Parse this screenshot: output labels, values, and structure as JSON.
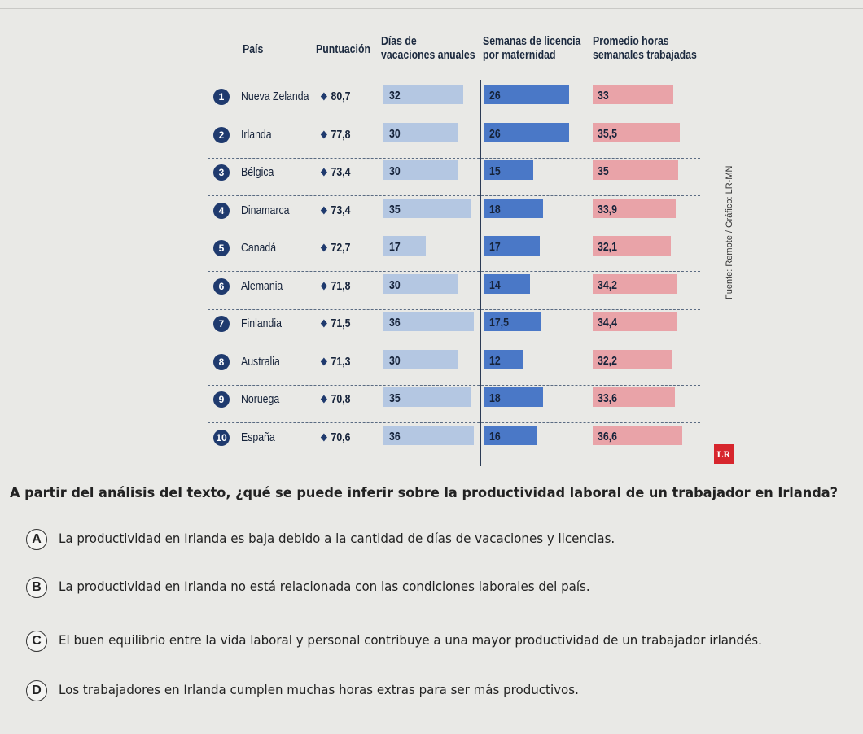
{
  "chart_data": {
    "type": "table",
    "headers": {
      "country": "País",
      "score": "Puntuación",
      "vacation": [
        "Días de",
        "vacaciones anuales"
      ],
      "maternity": [
        "Semanas de licencia",
        "por maternidad"
      ],
      "hours": [
        "Promedio horas",
        "semanales trabajadas"
      ]
    },
    "rows": [
      {
        "rank": "1",
        "country": "Nueva Zelanda",
        "score": "80,7",
        "vacation": 32,
        "maternity": 26,
        "hours": 33,
        "vacation_label": "32",
        "maternity_label": "26",
        "hours_label": "33"
      },
      {
        "rank": "2",
        "country": "Irlanda",
        "score": "77,8",
        "vacation": 30,
        "maternity": 26,
        "hours": 35.5,
        "vacation_label": "30",
        "maternity_label": "26",
        "hours_label": "35,5"
      },
      {
        "rank": "3",
        "country": "Bélgica",
        "score": "73,4",
        "vacation": 30,
        "maternity": 15,
        "hours": 35,
        "vacation_label": "30",
        "maternity_label": "15",
        "hours_label": "35"
      },
      {
        "rank": "4",
        "country": "Dinamarca",
        "score": "73,4",
        "vacation": 35,
        "maternity": 18,
        "hours": 33.9,
        "vacation_label": "35",
        "maternity_label": "18",
        "hours_label": "33,9"
      },
      {
        "rank": "5",
        "country": "Canadá",
        "score": "72,7",
        "vacation": 17,
        "maternity": 17,
        "hours": 32.1,
        "vacation_label": "17",
        "maternity_label": "17",
        "hours_label": "32,1"
      },
      {
        "rank": "6",
        "country": "Alemania",
        "score": "71,8",
        "vacation": 30,
        "maternity": 14,
        "hours": 34.2,
        "vacation_label": "30",
        "maternity_label": "14",
        "hours_label": "34,2"
      },
      {
        "rank": "7",
        "country": "Finlandia",
        "score": "71,5",
        "vacation": 36,
        "maternity": 17.5,
        "hours": 34.4,
        "vacation_label": "36",
        "maternity_label": "17,5",
        "hours_label": "34,4"
      },
      {
        "rank": "8",
        "country": "Australia",
        "score": "71,3",
        "vacation": 30,
        "maternity": 12,
        "hours": 32.2,
        "vacation_label": "30",
        "maternity_label": "12",
        "hours_label": "32,2"
      },
      {
        "rank": "9",
        "country": "Noruega",
        "score": "70,8",
        "vacation": 35,
        "maternity": 18,
        "hours": 33.6,
        "vacation_label": "35",
        "maternity_label": "18",
        "hours_label": "33,6"
      },
      {
        "rank": "10",
        "country": "España",
        "score": "70,6",
        "vacation": 36,
        "maternity": 16,
        "hours": 36.6,
        "vacation_label": "36",
        "maternity_label": "16",
        "hours_label": "36,6"
      }
    ],
    "colors": {
      "vacation": "#b4c7e2",
      "maternity": "#4a78c7",
      "hours": "#e9a3a8",
      "rank": "#1f3a6e"
    },
    "source": "Fuente: Remote / Gráfico: LR-MN",
    "logo": "LR"
  },
  "question": "A partir del análisis del texto, ¿qué se puede inferir sobre la productividad laboral de un trabajador en Irlanda?",
  "options": [
    {
      "letter": "A",
      "text": "La productividad en Irlanda es baja debido a la cantidad de días de vacaciones y licencias."
    },
    {
      "letter": "B",
      "text": "La productividad en Irlanda no está relacionada con las condiciones laborales del país."
    },
    {
      "letter": "C",
      "text": "El buen equilibrio entre la vida laboral y personal contribuye a una mayor productividad de un trabajador irlandés."
    },
    {
      "letter": "D",
      "text": "Los trabajadores en Irlanda cumplen muchas horas extras para ser más productivos."
    }
  ]
}
